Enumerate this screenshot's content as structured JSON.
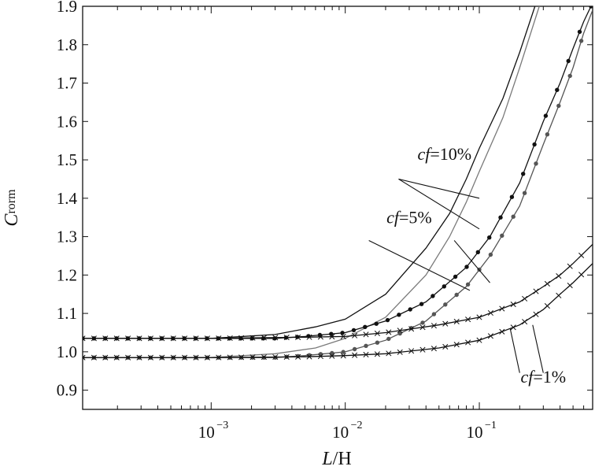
{
  "chart_data": {
    "type": "line",
    "xlabel": "L/H",
    "ylabel": "C_rorm",
    "ylabel_main": "C",
    "ylabel_sub": "rorm",
    "x_scale": "log",
    "xlim": [
      0.00011,
      0.7
    ],
    "ylim": [
      0.85,
      1.9
    ],
    "x_ticks": [
      {
        "value": 0.001,
        "base": "10",
        "exp": "−3"
      },
      {
        "value": 0.01,
        "base": "10",
        "exp": "−2"
      },
      {
        "value": 0.1,
        "base": "10",
        "exp": "−1"
      }
    ],
    "y_ticks": [
      "0.9",
      "1.0",
      "1.1",
      "1.2",
      "1.3",
      "1.4",
      "1.5",
      "1.6",
      "1.7",
      "1.8",
      "1.9"
    ],
    "grid": false,
    "colors": {
      "black": "#111111",
      "gray": "#7a7a7a",
      "dark_gray": "#555555"
    },
    "series": [
      {
        "group": "cf=10%",
        "marker": "none",
        "color": "#111111",
        "x": [
          0.00011,
          0.001,
          0.003,
          0.006,
          0.01,
          0.02,
          0.04,
          0.06,
          0.08,
          0.1,
          0.15,
          0.2,
          0.26
        ],
        "y": [
          1.035,
          1.035,
          1.045,
          1.065,
          1.085,
          1.15,
          1.27,
          1.36,
          1.45,
          1.53,
          1.66,
          1.78,
          1.9
        ]
      },
      {
        "group": "cf=10%",
        "marker": "none",
        "color": "#7a7a7a",
        "x": [
          0.00011,
          0.001,
          0.003,
          0.006,
          0.01,
          0.02,
          0.04,
          0.06,
          0.08,
          0.1,
          0.15,
          0.2,
          0.28
        ],
        "y": [
          0.985,
          0.985,
          0.995,
          1.01,
          1.035,
          1.09,
          1.2,
          1.3,
          1.39,
          1.47,
          1.61,
          1.74,
          1.9
        ]
      },
      {
        "group": "cf=5%",
        "marker": "dot",
        "color": "#111111",
        "x": [
          0.00011,
          0.001,
          0.003,
          0.005,
          0.01,
          0.02,
          0.04,
          0.08,
          0.12,
          0.2,
          0.3,
          0.4,
          0.5,
          0.6,
          0.68
        ],
        "y": [
          1.035,
          1.035,
          1.035,
          1.04,
          1.05,
          1.08,
          1.13,
          1.22,
          1.3,
          1.44,
          1.6,
          1.7,
          1.79,
          1.86,
          1.9
        ]
      },
      {
        "group": "cf=5%",
        "marker": "dot",
        "color": "#555555",
        "x": [
          0.00011,
          0.001,
          0.003,
          0.005,
          0.01,
          0.02,
          0.04,
          0.08,
          0.12,
          0.2,
          0.3,
          0.4,
          0.5,
          0.6,
          0.7
        ],
        "y": [
          0.985,
          0.985,
          0.985,
          0.99,
          1.0,
          1.03,
          1.08,
          1.17,
          1.25,
          1.38,
          1.54,
          1.65,
          1.74,
          1.83,
          1.89
        ]
      },
      {
        "group": "cf=1%",
        "marker": "cross",
        "color": "#111111",
        "x": [
          0.00011,
          0.001,
          0.005,
          0.01,
          0.02,
          0.05,
          0.1,
          0.2,
          0.3,
          0.4,
          0.5,
          0.7
        ],
        "y": [
          1.035,
          1.035,
          1.038,
          1.04,
          1.05,
          1.07,
          1.09,
          1.13,
          1.17,
          1.2,
          1.23,
          1.28
        ]
      },
      {
        "group": "cf=1%",
        "marker": "cross",
        "color": "#111111",
        "x": [
          0.00011,
          0.001,
          0.005,
          0.01,
          0.02,
          0.05,
          0.1,
          0.2,
          0.3,
          0.4,
          0.5,
          0.7
        ],
        "y": [
          0.985,
          0.985,
          0.987,
          0.99,
          0.995,
          1.01,
          1.03,
          1.07,
          1.11,
          1.15,
          1.18,
          1.23
        ]
      }
    ],
    "annotations": [
      {
        "text": "cf=10%",
        "italic": "cf",
        "rest": "=10%",
        "label_at": [
          0.055,
          1.5
        ],
        "pointers": [
          {
            "from": [
              0.025,
              1.45
            ],
            "to": [
              0.1,
              1.4
            ]
          },
          {
            "from": [
              0.025,
              1.45
            ],
            "to": [
              0.1,
              1.32
            ]
          }
        ]
      },
      {
        "text": "cf=5%",
        "italic": "cf",
        "rest": "=5%",
        "label_at": [
          0.03,
          1.335
        ],
        "pointers": [
          {
            "from": [
              0.015,
              1.29
            ],
            "to": [
              0.085,
              1.16
            ]
          },
          {
            "from": [
              0.065,
              1.29
            ],
            "to": [
              0.12,
              1.18
            ]
          }
        ]
      },
      {
        "text": "cf=1%",
        "italic": "cf",
        "rest": "=1%",
        "label_at": [
          0.3,
          0.92
        ],
        "pointers": [
          {
            "from": [
              0.2,
              0.945
            ],
            "to": [
              0.17,
              1.06
            ]
          },
          {
            "from": [
              0.3,
              0.945
            ],
            "to": [
              0.25,
              1.07
            ]
          }
        ]
      }
    ]
  }
}
